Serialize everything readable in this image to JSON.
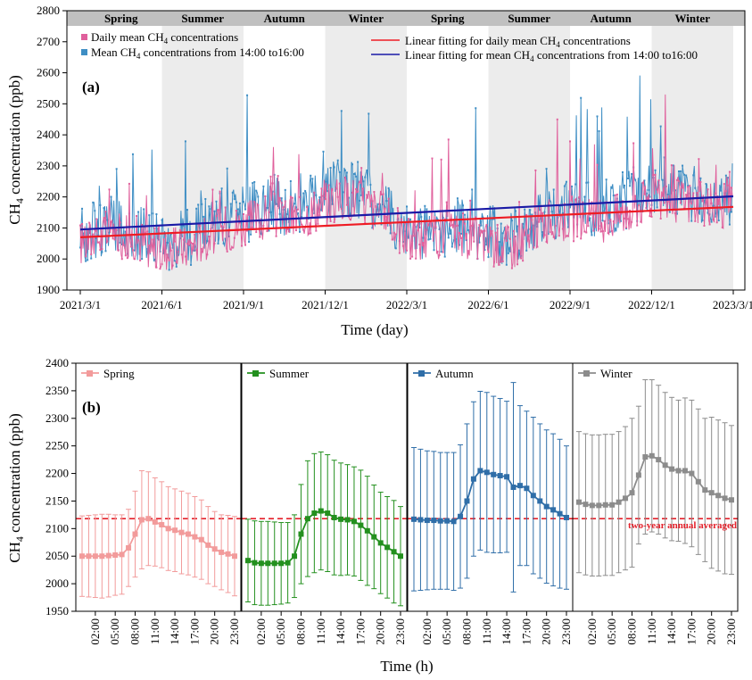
{
  "colors": {
    "daily": "#e0609c",
    "afternoon": "#3e8ec4",
    "fit_daily": "#ee1c24",
    "fit_afternoon": "#1a1aa6",
    "band": "#ececec",
    "header": "#c0c0c0",
    "spring": "#f29b9b",
    "summer": "#23901e",
    "autumn": "#2f6ea8",
    "winter": "#8c8c8c",
    "refline": "#e4202a"
  },
  "chart_data": [
    {
      "type": "line",
      "panel_label": "(a)",
      "xlabel": "Time (day)",
      "ylabel_pre": "CH",
      "ylabel_sub": "4",
      "ylabel_post": " concentration (ppb)",
      "x_tick_labels": [
        "2021/3/1",
        "2021/6/1",
        "2021/9/1",
        "2021/12/1",
        "2022/3/1",
        "2022/6/1",
        "2022/9/1",
        "2022/12/1",
        "2023/3/1"
      ],
      "ylim": [
        1900,
        2800
      ],
      "y_ticks": [
        1900,
        2000,
        2100,
        2200,
        2300,
        2400,
        2500,
        2600,
        2700,
        2800
      ],
      "season_labels": [
        "Spring",
        "Summer",
        "Autumn",
        "Winter",
        "Spring",
        "Summer",
        "Autumn",
        "Winter"
      ],
      "legend": [
        {
          "pre": "Daily mean CH",
          "sub": "4",
          "post": " concentrations"
        },
        {
          "pre": "Mean CH",
          "sub": "4",
          "post": " concentrations from 14:00 to16:00"
        },
        {
          "pre": "Linear fitting for daily mean CH",
          "sub": "4",
          "post": " concentrations"
        },
        {
          "pre": "Linear fitting for mean CH",
          "sub": "4",
          "post": " concentrations from 14:00 to16:00"
        }
      ],
      "series": [
        {
          "name": "Daily mean CH4 concentrations",
          "style": "points-line",
          "monthly_mean": [
            2050,
            2080,
            2070,
            2020,
            2040,
            2090,
            2110,
            2140,
            2130,
            2180,
            2200,
            2150,
            2060,
            2070,
            2080,
            2050,
            2040,
            2120,
            2130,
            2120,
            2150,
            2200,
            2190,
            2170
          ]
        },
        {
          "name": "Mean CH4 concentrations from 14:00 to16:00",
          "style": "points-line",
          "monthly_mean": [
            2070,
            2110,
            2090,
            2040,
            2070,
            2120,
            2140,
            2180,
            2160,
            2220,
            2230,
            2180,
            2080,
            2090,
            2110,
            2080,
            2070,
            2150,
            2160,
            2160,
            2190,
            2240,
            2230,
            2190
          ]
        },
        {
          "name": "Linear fitting for daily mean CH4 concentrations",
          "style": "line",
          "x": [
            "2021/3/1",
            "2023/3/1"
          ],
          "y": [
            2070,
            2168
          ]
        },
        {
          "name": "Linear fitting for mean CH4 concentrations from 14:00 to16:00",
          "style": "line",
          "x": [
            "2021/3/1",
            "2023/3/1"
          ],
          "y": [
            2095,
            2202
          ]
        }
      ]
    },
    {
      "type": "line",
      "panel_label": "(b)",
      "xlabel": "Time (h)",
      "ylabel_pre": "CH",
      "ylabel_sub": "4",
      "ylabel_post": " concentration (ppb)",
      "ylim": [
        1950,
        2400
      ],
      "y_ticks": [
        1950,
        2000,
        2050,
        2100,
        2150,
        2200,
        2250,
        2300,
        2350,
        2400
      ],
      "x_tick_labels": [
        "02:00",
        "05:00",
        "08:00",
        "11:00",
        "14:00",
        "17:00",
        "20:00",
        "23:00"
      ],
      "reference": {
        "value": 2118,
        "label": "two-year annual averaged"
      },
      "series": [
        {
          "name": "Spring",
          "color_key": "spring",
          "hours": [
            0,
            1,
            2,
            3,
            4,
            5,
            6,
            7,
            8,
            9,
            10,
            11,
            12,
            13,
            14,
            15,
            16,
            17,
            18,
            19,
            20,
            21,
            22,
            23
          ],
          "values": [
            2050,
            2050,
            2050,
            2050,
            2051,
            2052,
            2053,
            2065,
            2090,
            2116,
            2118,
            2112,
            2107,
            2100,
            2097,
            2093,
            2090,
            2085,
            2080,
            2070,
            2063,
            2057,
            2054,
            2050
          ],
          "err": [
            73,
            74,
            75,
            76,
            75,
            73,
            72,
            70,
            78,
            89,
            85,
            80,
            78,
            76,
            75,
            75,
            74,
            73,
            72,
            70,
            68,
            68,
            70,
            72
          ]
        },
        {
          "name": "Summer",
          "color_key": "summer",
          "hours": [
            0,
            1,
            2,
            3,
            4,
            5,
            6,
            7,
            8,
            9,
            10,
            11,
            12,
            13,
            14,
            15,
            16,
            17,
            18,
            19,
            20,
            21,
            22,
            23
          ],
          "values": [
            2042,
            2038,
            2037,
            2037,
            2037,
            2037,
            2038,
            2050,
            2090,
            2118,
            2128,
            2132,
            2128,
            2120,
            2117,
            2116,
            2113,
            2106,
            2096,
            2085,
            2074,
            2066,
            2058,
            2050
          ],
          "err": [
            75,
            76,
            76,
            76,
            75,
            74,
            73,
            75,
            90,
            105,
            108,
            107,
            106,
            104,
            102,
            100,
            99,
            100,
            99,
            94,
            92,
            92,
            93,
            90
          ]
        },
        {
          "name": "Autumn",
          "color_key": "autumn",
          "hours": [
            0,
            1,
            2,
            3,
            4,
            5,
            6,
            7,
            8,
            9,
            10,
            11,
            12,
            13,
            14,
            15,
            16,
            17,
            18,
            19,
            20,
            21,
            22,
            23
          ],
          "values": [
            2117,
            2116,
            2115,
            2115,
            2114,
            2114,
            2113,
            2122,
            2150,
            2190,
            2205,
            2202,
            2198,
            2196,
            2194,
            2175,
            2178,
            2173,
            2160,
            2150,
            2140,
            2134,
            2127,
            2120
          ],
          "err": [
            130,
            128,
            126,
            125,
            124,
            124,
            125,
            130,
            140,
            140,
            144,
            145,
            142,
            140,
            137,
            190,
            145,
            140,
            142,
            140,
            139,
            138,
            135,
            130
          ]
        },
        {
          "name": "Winter",
          "color_key": "winter",
          "hours": [
            0,
            1,
            2,
            3,
            4,
            5,
            6,
            7,
            8,
            9,
            10,
            11,
            12,
            13,
            14,
            15,
            16,
            17,
            18,
            19,
            20,
            21,
            22,
            23
          ],
          "values": [
            2148,
            2144,
            2142,
            2142,
            2143,
            2143,
            2148,
            2155,
            2165,
            2197,
            2230,
            2232,
            2225,
            2215,
            2208,
            2205,
            2205,
            2200,
            2185,
            2170,
            2165,
            2160,
            2155,
            2152
          ],
          "err": [
            128,
            128,
            128,
            128,
            128,
            128,
            128,
            130,
            135,
            125,
            140,
            138,
            135,
            132,
            130,
            128,
            132,
            133,
            132,
            130,
            137,
            137,
            137,
            135
          ]
        }
      ]
    }
  ]
}
